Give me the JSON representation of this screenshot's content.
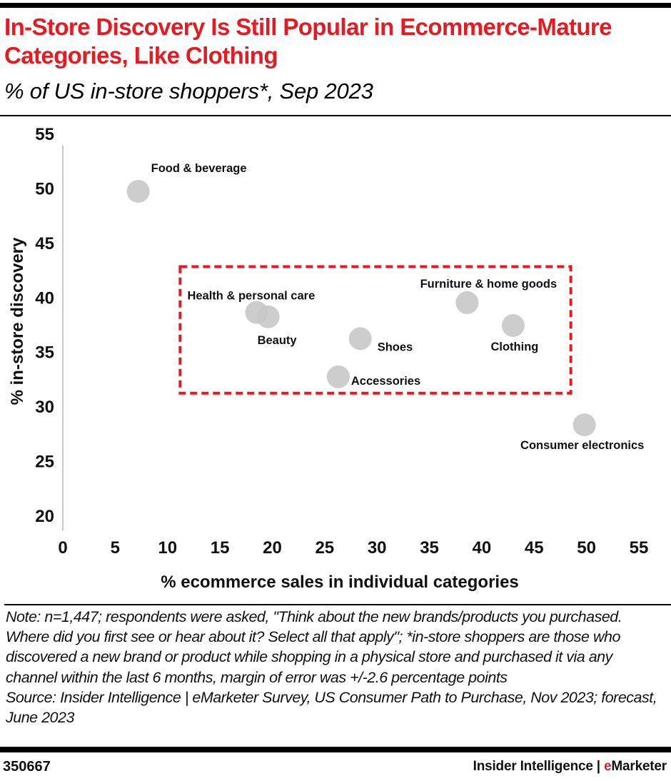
{
  "header": {
    "title": "In-Store Discovery Is Still Popular in Ecommerce-Mature Categories, Like Clothing",
    "subtitle": "% of US in-store shoppers*, Sep 2023"
  },
  "chart_data": {
    "type": "scatter",
    "title": "In-Store Discovery Is Still Popular in Ecommerce-Mature Categories, Like Clothing",
    "subtitle": "% of US in-store shoppers*, Sep 2023",
    "xlabel": "% ecommerce sales in individual categories",
    "ylabel": "% in-store discovery",
    "xlim": [
      0,
      55
    ],
    "ylim": [
      20,
      55
    ],
    "x_ticks": [
      0,
      5,
      10,
      15,
      20,
      25,
      30,
      35,
      40,
      45,
      50,
      55
    ],
    "y_ticks": [
      20,
      25,
      30,
      35,
      40,
      45,
      50,
      55
    ],
    "grid": false,
    "legend": null,
    "marker_color": "#c8c8c8",
    "highlight_color": "#e31b23",
    "points": [
      {
        "label": "Food & beverage",
        "x": 7.2,
        "y": 49.7
      },
      {
        "label": "Health & personal care",
        "x": 18.5,
        "y": 38.6
      },
      {
        "label": "Beauty",
        "x": 19.6,
        "y": 38.2
      },
      {
        "label": "Shoes",
        "x": 28.4,
        "y": 36.2
      },
      {
        "label": "Accessories",
        "x": 26.3,
        "y": 32.7
      },
      {
        "label": "Furniture & home goods",
        "x": 38.6,
        "y": 39.5
      },
      {
        "label": "Clothing",
        "x": 43.0,
        "y": 37.4
      },
      {
        "label": "Consumer electronics",
        "x": 49.8,
        "y": 28.3
      }
    ],
    "annotations": [
      {
        "type": "dashed-rectangle",
        "description": "highlight of ecommerce-mature categories",
        "x_range": [
          11.2,
          48.5
        ],
        "y_range": [
          31.2,
          42.8
        ]
      }
    ]
  },
  "footer": {
    "note": "Note: n=1,447; respondents were asked, \"Think about the new brands/products you purchased. Where did you first see or hear about it? Select all that apply\"; *in-store shoppers are those who discovered a new brand or product while shopping in a physical store and purchased it via any channel within the last 6 months, margin of error was +/-2.6 percentage points",
    "source": "Source: Insider Intelligence | eMarketer Survey, US Consumer Path to Purchase, Nov 2023; forecast, June 2023",
    "chart_id": "350667",
    "brand_prefix": "Insider Intelligence | ",
    "brand_accent": "e",
    "brand_suffix": "Marketer"
  }
}
